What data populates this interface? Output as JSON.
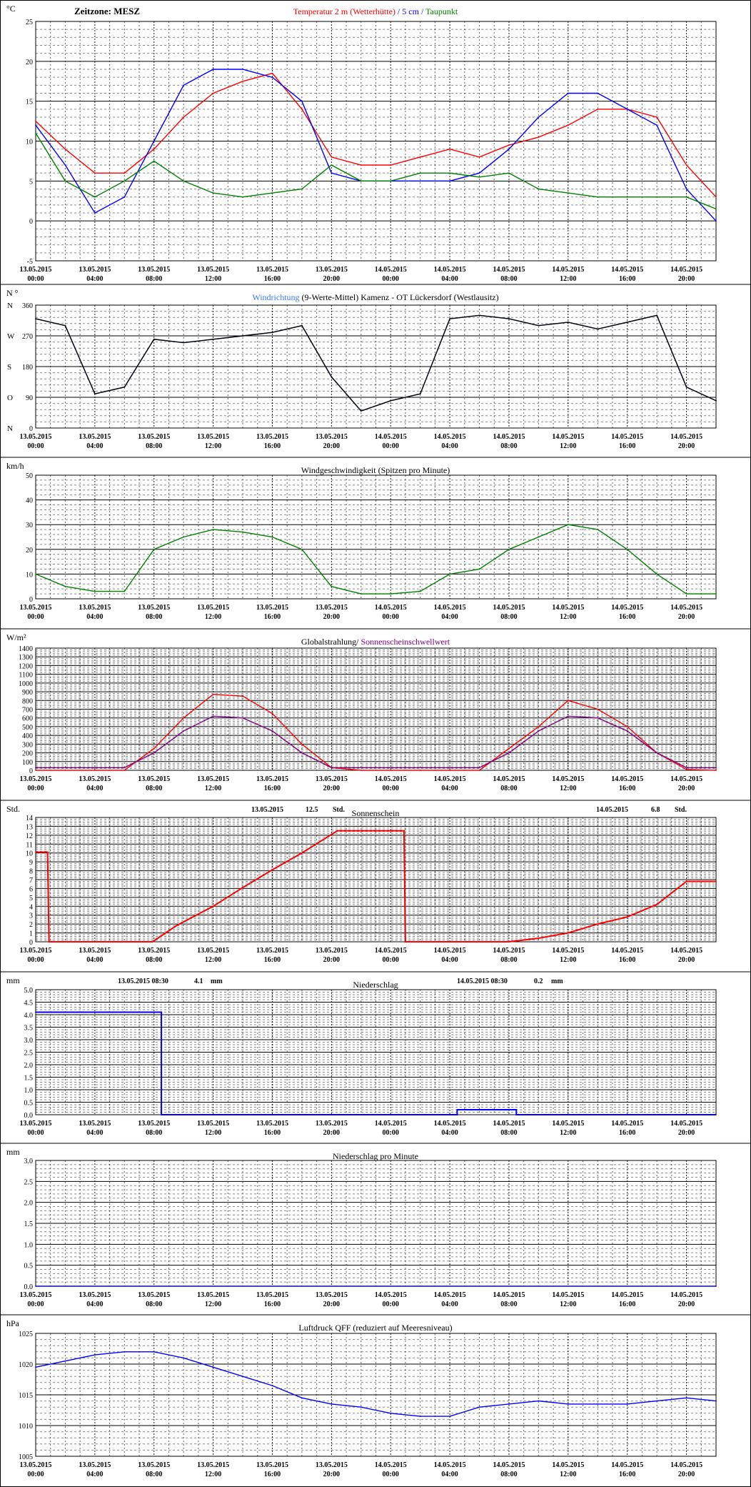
{
  "x_ticks": [
    {
      "date": "13.05.2015",
      "time": "00:00"
    },
    {
      "date": "13.05.2015",
      "time": "04:00"
    },
    {
      "date": "13.05.2015",
      "time": "08:00"
    },
    {
      "date": "13.05.2015",
      "time": "12:00"
    },
    {
      "date": "13.05.2015",
      "time": "16:00"
    },
    {
      "date": "13.05.2015",
      "time": "20:00"
    },
    {
      "date": "14.05.2015",
      "time": "00:00"
    },
    {
      "date": "14.05.2015",
      "time": "04:00"
    },
    {
      "date": "14.05.2015",
      "time": "08:00"
    },
    {
      "date": "14.05.2015",
      "time": "12:00"
    },
    {
      "date": "14.05.2015",
      "time": "16:00"
    },
    {
      "date": "14.05.2015",
      "time": "20:00"
    }
  ],
  "colors": {
    "red": "#ff0000",
    "blue": "#0000ff",
    "green": "#008000",
    "black": "#000000",
    "lightblue": "#3c78ff",
    "purple": "#800080",
    "grid": "#000000"
  },
  "chart_data": [
    {
      "type": "line",
      "timezone_label": "Zeitzone: MESZ",
      "title_parts": [
        {
          "text": "Temperatur 2 m (Wetterhütte)",
          "color": "#ff0000"
        },
        {
          "text": "  /  ",
          "color": "#0000ff"
        },
        {
          "text": "5 cm",
          "color": "#0000ff"
        },
        {
          "text": " / ",
          "color": "#0000ff"
        },
        {
          "text": "Taupunkt",
          "color": "#008000"
        }
      ],
      "ylabel": "°C",
      "ylim": [
        -5,
        25
      ],
      "yticks": [
        -5,
        0,
        5,
        10,
        15,
        20,
        25
      ],
      "x_hours": [
        0,
        2,
        4,
        6,
        8,
        10,
        12,
        14,
        16,
        18,
        20,
        22,
        24,
        26,
        28,
        30,
        32,
        34,
        36,
        38,
        40,
        42,
        44,
        46
      ],
      "series": [
        {
          "name": "Temperatur 2 m (Wetterhütte)",
          "color": "#ff0000",
          "values": [
            12.5,
            9,
            6,
            6,
            9,
            13,
            16,
            17.5,
            18.5,
            14,
            8,
            7,
            7,
            8,
            9,
            8,
            9.5,
            10.5,
            12,
            14,
            14,
            13,
            7,
            3
          ]
        },
        {
          "name": "5 cm",
          "color": "#0000ff",
          "values": [
            12,
            7,
            1,
            3,
            10,
            17,
            19,
            19,
            18,
            15,
            6,
            5,
            5,
            5,
            5,
            6,
            9,
            13,
            16,
            16,
            14,
            12,
            4,
            0
          ]
        },
        {
          "name": "Taupunkt",
          "color": "#008000",
          "values": [
            11,
            5,
            3,
            5,
            7.5,
            5,
            3.5,
            3,
            3.5,
            4,
            7,
            5,
            5,
            6,
            6,
            5.5,
            6,
            4,
            3.5,
            3,
            3,
            3,
            3,
            1.5
          ]
        }
      ]
    },
    {
      "type": "line",
      "title_parts": [
        {
          "text": "Windrichtung",
          "color": "#3c78ff"
        },
        {
          "text": " (9-Werte-Mittel)",
          "color": "#000000"
        },
        {
          "text": "        Kamenz - OT Lückersdorf (Westlausitz)",
          "color": "#000000"
        }
      ],
      "ylabel": "N °",
      "ylim": [
        0,
        360
      ],
      "yticks": [
        0,
        90,
        180,
        270,
        360
      ],
      "y_compass": [
        {
          "label": "N",
          "value": 360
        },
        {
          "label": "W",
          "value": 270
        },
        {
          "label": "S",
          "value": 180
        },
        {
          "label": "O",
          "value": 90
        },
        {
          "label": "N",
          "value": 0
        }
      ],
      "x_hours": [
        0,
        2,
        4,
        6,
        8,
        10,
        12,
        14,
        16,
        18,
        20,
        22,
        24,
        26,
        28,
        30,
        32,
        34,
        36,
        38,
        40,
        42,
        44,
        46
      ],
      "series": [
        {
          "name": "Windrichtung",
          "color": "#3c78ff",
          "values": [
            320,
            300,
            100,
            120,
            260,
            250,
            260,
            270,
            280,
            300,
            150,
            50,
            80,
            100,
            320,
            330,
            320,
            300,
            310,
            290,
            310,
            330,
            120,
            80
          ]
        },
        {
          "name": "9-Werte-Mittel",
          "color": "#000000",
          "values": [
            320,
            300,
            100,
            120,
            260,
            250,
            260,
            270,
            280,
            300,
            150,
            50,
            80,
            100,
            320,
            330,
            320,
            300,
            310,
            290,
            310,
            330,
            120,
            80
          ]
        }
      ]
    },
    {
      "type": "line",
      "title_parts": [
        {
          "text": "Windgeschwindigkeit (Spitzen pro Minute)",
          "color": "#000000"
        }
      ],
      "ylabel": "km/h",
      "ylim": [
        0,
        50
      ],
      "yticks": [
        0,
        10,
        20,
        30,
        40,
        50
      ],
      "x_hours": [
        0,
        2,
        4,
        6,
        8,
        10,
        12,
        14,
        16,
        18,
        20,
        22,
        24,
        26,
        28,
        30,
        32,
        34,
        36,
        38,
        40,
        42,
        44,
        46
      ],
      "series": [
        {
          "name": "Windgeschwindigkeit",
          "color": "#008000",
          "values": [
            10,
            5,
            3,
            3,
            20,
            25,
            28,
            27,
            25,
            20,
            5,
            2,
            2,
            3,
            10,
            12,
            20,
            25,
            30,
            28,
            20,
            10,
            2,
            2
          ]
        }
      ]
    },
    {
      "type": "line",
      "title_parts": [
        {
          "text": "Globalstrahlung/",
          "color": "#000000"
        },
        {
          "text": " Sonnenscheinschwellwert",
          "color": "#800080"
        }
      ],
      "ylabel": "W/m²",
      "ylim": [
        0,
        1400
      ],
      "yticks": [
        0,
        100,
        200,
        300,
        400,
        500,
        600,
        700,
        800,
        900,
        1000,
        1100,
        1200,
        1300,
        1400
      ],
      "x_hours": [
        0,
        2,
        4,
        6,
        8,
        10,
        12,
        14,
        16,
        18,
        20,
        22,
        24,
        26,
        28,
        30,
        32,
        34,
        36,
        38,
        40,
        42,
        44,
        46
      ],
      "series": [
        {
          "name": "Globalstrahlung",
          "color": "#ff0000",
          "values": [
            0,
            0,
            0,
            0,
            250,
            600,
            870,
            850,
            650,
            300,
            30,
            0,
            0,
            0,
            0,
            0,
            250,
            500,
            800,
            700,
            500,
            200,
            10,
            0
          ]
        },
        {
          "name": "Sonnenscheinschwellwert",
          "color": "#800080",
          "values": [
            30,
            30,
            30,
            30,
            200,
            450,
            620,
            600,
            450,
            200,
            30,
            30,
            30,
            30,
            30,
            30,
            200,
            450,
            620,
            600,
            450,
            200,
            30,
            30
          ]
        }
      ]
    },
    {
      "type": "line",
      "header_left": {
        "date": "13.05.2015",
        "value": "12.5",
        "unit": "Std."
      },
      "header_right": {
        "date": "14.05.2015",
        "value": "6.8",
        "unit": "Std."
      },
      "title_parts": [
        {
          "text": "Sonnenschein",
          "color": "#000000"
        }
      ],
      "ylabel": "Std.",
      "ylim": [
        0,
        14
      ],
      "yticks": [
        0,
        1,
        2,
        3,
        4,
        5,
        6,
        7,
        8,
        9,
        10,
        11,
        12,
        13,
        14
      ],
      "x_hours": [
        0,
        0.8,
        0.9,
        7.9,
        9.5,
        12,
        14,
        16,
        18,
        20.4,
        24.9,
        25,
        32,
        34,
        36,
        38,
        40,
        42,
        44,
        46
      ],
      "series": [
        {
          "name": "Sonnenschein",
          "color": "#ff0000",
          "values": [
            10.1,
            10.1,
            0,
            0,
            1.8,
            4,
            6.1,
            8.1,
            10,
            12.5,
            12.5,
            0,
            0,
            0.4,
            1,
            2,
            2.8,
            4.2,
            6.8,
            6.8
          ]
        }
      ]
    },
    {
      "type": "line",
      "header_left": {
        "date": "13.05.2015 08:30",
        "value": "4.1",
        "unit": "mm"
      },
      "header_right": {
        "date": "14.05.2015 08:30",
        "value": "0.2",
        "unit": "mm"
      },
      "title_parts": [
        {
          "text": "Niederschlag",
          "color": "#000000"
        }
      ],
      "ylabel": "mm",
      "ylim": [
        0,
        5
      ],
      "yticks": [
        0,
        0.5,
        1,
        1.5,
        2,
        2.5,
        3,
        3.5,
        4,
        4.5,
        5
      ],
      "ytick_labels": [
        "0.0",
        "0.5",
        "1.0",
        "1.5",
        "2.0",
        "2.5",
        "3.0",
        "3.5",
        "4.0",
        "4.5",
        "5.0"
      ],
      "x_hours": [
        0,
        8.5,
        8.5,
        28.5,
        28.5,
        32.5,
        32.5,
        46
      ],
      "series": [
        {
          "name": "Niederschlag",
          "color": "#0000ff",
          "values": [
            4.1,
            4.1,
            0,
            0,
            0.2,
            0.2,
            0,
            0
          ]
        }
      ]
    },
    {
      "type": "line",
      "title_parts": [
        {
          "text": "Niederschlag pro Minute",
          "color": "#000000"
        }
      ],
      "ylabel": "mm",
      "ylim": [
        0,
        3
      ],
      "yticks": [
        0,
        0.5,
        1,
        1.5,
        2,
        2.5,
        3
      ],
      "ytick_labels": [
        "0.0",
        "0.5",
        "1.0",
        "1.5",
        "2.0",
        "2.5",
        "3.0"
      ],
      "x_hours": [
        0,
        46
      ],
      "series": [
        {
          "name": "Niederschlag pro Minute",
          "color": "#0000ff",
          "values": [
            0,
            0
          ]
        }
      ]
    },
    {
      "type": "line",
      "title_parts": [
        {
          "text": "Luftdruck QFF (reduziert auf Meeresniveau)",
          "color": "#000000"
        }
      ],
      "ylabel": "hPa",
      "ylim": [
        1005,
        1025
      ],
      "yticks": [
        1005,
        1010,
        1015,
        1020,
        1025
      ],
      "x_hours": [
        0,
        2,
        4,
        6,
        8,
        10,
        12,
        14,
        16,
        18,
        20,
        22,
        24,
        26,
        28,
        30,
        32,
        34,
        36,
        38,
        40,
        42,
        44,
        46
      ],
      "series": [
        {
          "name": "Luftdruck QFF",
          "color": "#0000ff",
          "values": [
            1019.5,
            1020.5,
            1021.5,
            1022,
            1022,
            1021,
            1019.5,
            1018,
            1016.5,
            1014.5,
            1013.5,
            1013,
            1012,
            1011.5,
            1011.5,
            1013,
            1013.5,
            1014,
            1013.5,
            1013.5,
            1013.5,
            1014,
            1014.5,
            1014
          ]
        }
      ]
    }
  ]
}
